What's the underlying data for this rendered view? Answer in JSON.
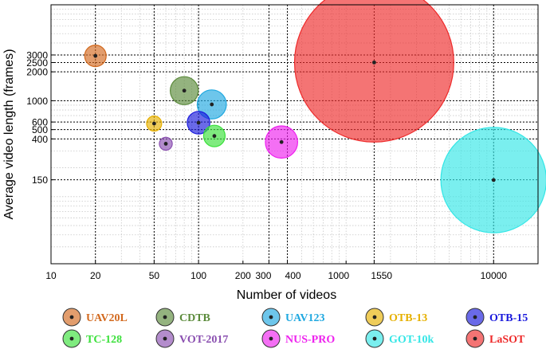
{
  "chart_data": {
    "type": "scatter",
    "subtype": "bubble",
    "xlabel": "Number of videos",
    "ylabel": "Average video length (frames)",
    "xscale": "log",
    "yscale": "log",
    "xlim": [
      10,
      20000
    ],
    "ylim": [
      20,
      10000
    ],
    "grid": true,
    "legend_position": "bottom",
    "x_ticks": [
      10,
      20,
      50,
      100,
      200,
      300,
      400,
      1000,
      1550,
      10000
    ],
    "x_tick_labels": [
      "10",
      "20",
      "50",
      "100",
      "200",
      "300",
      "400",
      "1000",
      "1550",
      "10000"
    ],
    "y_ticks": [
      150,
      400,
      500,
      600,
      1000,
      2000,
      2500,
      3000
    ],
    "y_tick_labels": [
      "150",
      "400",
      "500",
      "600",
      "1000",
      "2000",
      "2500",
      "3000"
    ],
    "highlight_x": [
      20,
      50,
      100,
      300,
      400,
      1550,
      10000
    ],
    "highlight_y": [
      150,
      400,
      500,
      600,
      1000,
      2000,
      2500,
      3000
    ],
    "series": [
      {
        "name": "UAV20L",
        "x": 20,
        "y": 2934,
        "size": 1.0,
        "color": "#d2691e",
        "text_color": "#d2691e"
      },
      {
        "name": "CDTB",
        "x": 80,
        "y": 1274,
        "size": 1.3,
        "color": "#5a8a3a",
        "text_color": "#5a8a3a"
      },
      {
        "name": "UAV123",
        "x": 123,
        "y": 915,
        "size": 1.35,
        "color": "#1fa8e0",
        "text_color": "#1fa8e0"
      },
      {
        "name": "OTB-13",
        "x": 50,
        "y": 578,
        "size": 0.7,
        "color": "#e6b000",
        "text_color": "#e6b000"
      },
      {
        "name": "OTB-15",
        "x": 100,
        "y": 590,
        "size": 1.05,
        "color": "#1a1adc",
        "text_color": "#1a1adc"
      },
      {
        "name": "TC-128",
        "x": 128,
        "y": 429,
        "size": 1.0,
        "color": "#3ae03a",
        "text_color": "#3ae03a"
      },
      {
        "name": "VOT-2017",
        "x": 60,
        "y": 356,
        "size": 0.6,
        "color": "#8a4fb0",
        "text_color": "#8a4fb0"
      },
      {
        "name": "NUS-PRO",
        "x": 365,
        "y": 371,
        "size": 1.5,
        "color": "#ee22ee",
        "text_color": "#ee22ee"
      },
      {
        "name": "GOT-10k",
        "x": 10000,
        "y": 149,
        "size": 4.9,
        "color": "#33e6e6",
        "text_color": "#33e6e6"
      },
      {
        "name": "LaSOT",
        "x": 1550,
        "y": 2506,
        "size": 7.4,
        "color": "#ee2a2a",
        "text_color": "#ee2a2a"
      }
    ]
  }
}
